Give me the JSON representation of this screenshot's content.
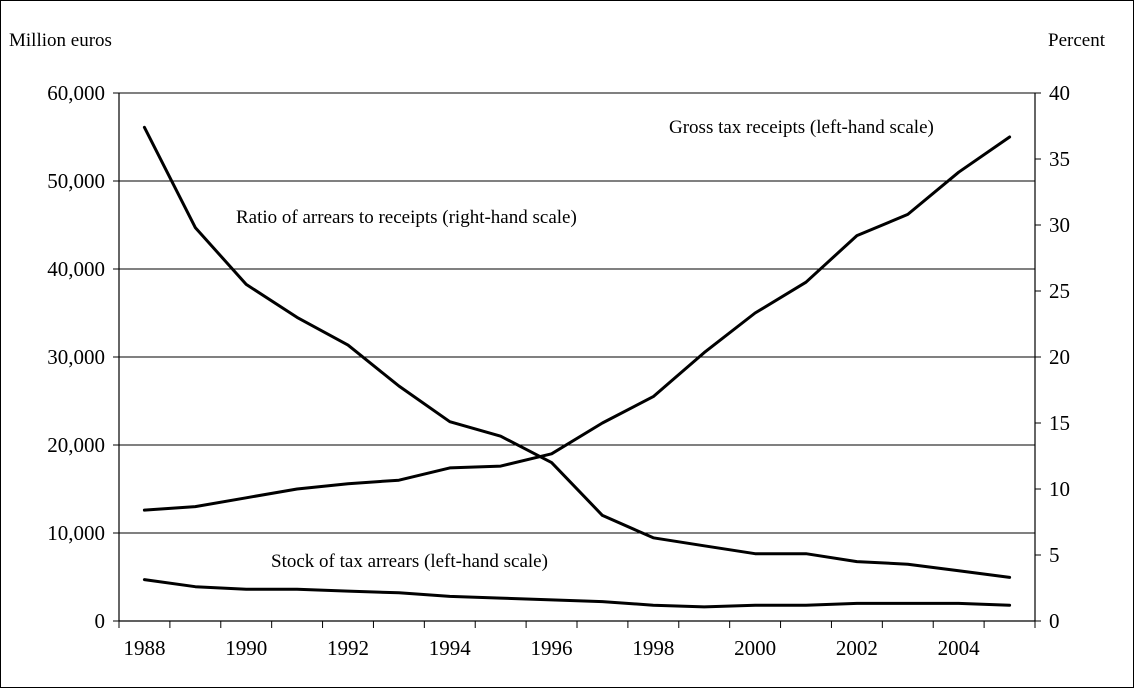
{
  "chart_data": {
    "type": "line",
    "left_axis_label": "Million euros",
    "right_axis_label": "Percent",
    "x": [
      1988,
      1989,
      1990,
      1991,
      1992,
      1993,
      1994,
      1995,
      1996,
      1997,
      1998,
      1999,
      2000,
      2001,
      2002,
      2003,
      2004,
      2005
    ],
    "x_tick_labels": [
      "1988",
      "1990",
      "1992",
      "1994",
      "1996",
      "1998",
      "2000",
      "2002",
      "2004"
    ],
    "left_tick_labels": [
      "0",
      "10,000",
      "20,000",
      "30,000",
      "40,000",
      "50,000",
      "60,000"
    ],
    "right_tick_labels": [
      "0",
      "5",
      "10",
      "15",
      "20",
      "25",
      "30",
      "35",
      "40"
    ],
    "left_ylim": [
      0,
      60000
    ],
    "right_ylim": [
      0,
      40
    ],
    "grid": "horizontal",
    "legend": "none",
    "series": [
      {
        "name": "Gross tax receipts (left-hand scale)",
        "axis": "left",
        "color": "#000000",
        "values": [
          12600,
          13000,
          14000,
          15000,
          15600,
          16000,
          17400,
          17600,
          19000,
          22500,
          25500,
          30500,
          35000,
          38500,
          43800,
          46200,
          51000,
          55000
        ]
      },
      {
        "name": "Ratio of arrears to receipts (right-hand scale)",
        "axis": "right",
        "color": "#000000",
        "values": [
          37.4,
          29.8,
          25.5,
          23.0,
          20.9,
          17.8,
          15.1,
          14.0,
          12.0,
          8.0,
          6.3,
          5.7,
          5.1,
          5.1,
          4.5,
          4.3,
          3.8,
          3.3
        ]
      },
      {
        "name": "Stock of tax arrears (left-hand scale)",
        "axis": "left",
        "color": "#000000",
        "values": [
          4700,
          3900,
          3600,
          3600,
          3400,
          3200,
          2800,
          2600,
          2400,
          2200,
          1800,
          1600,
          1800,
          1800,
          2000,
          2000,
          2000,
          1800
        ]
      }
    ]
  }
}
